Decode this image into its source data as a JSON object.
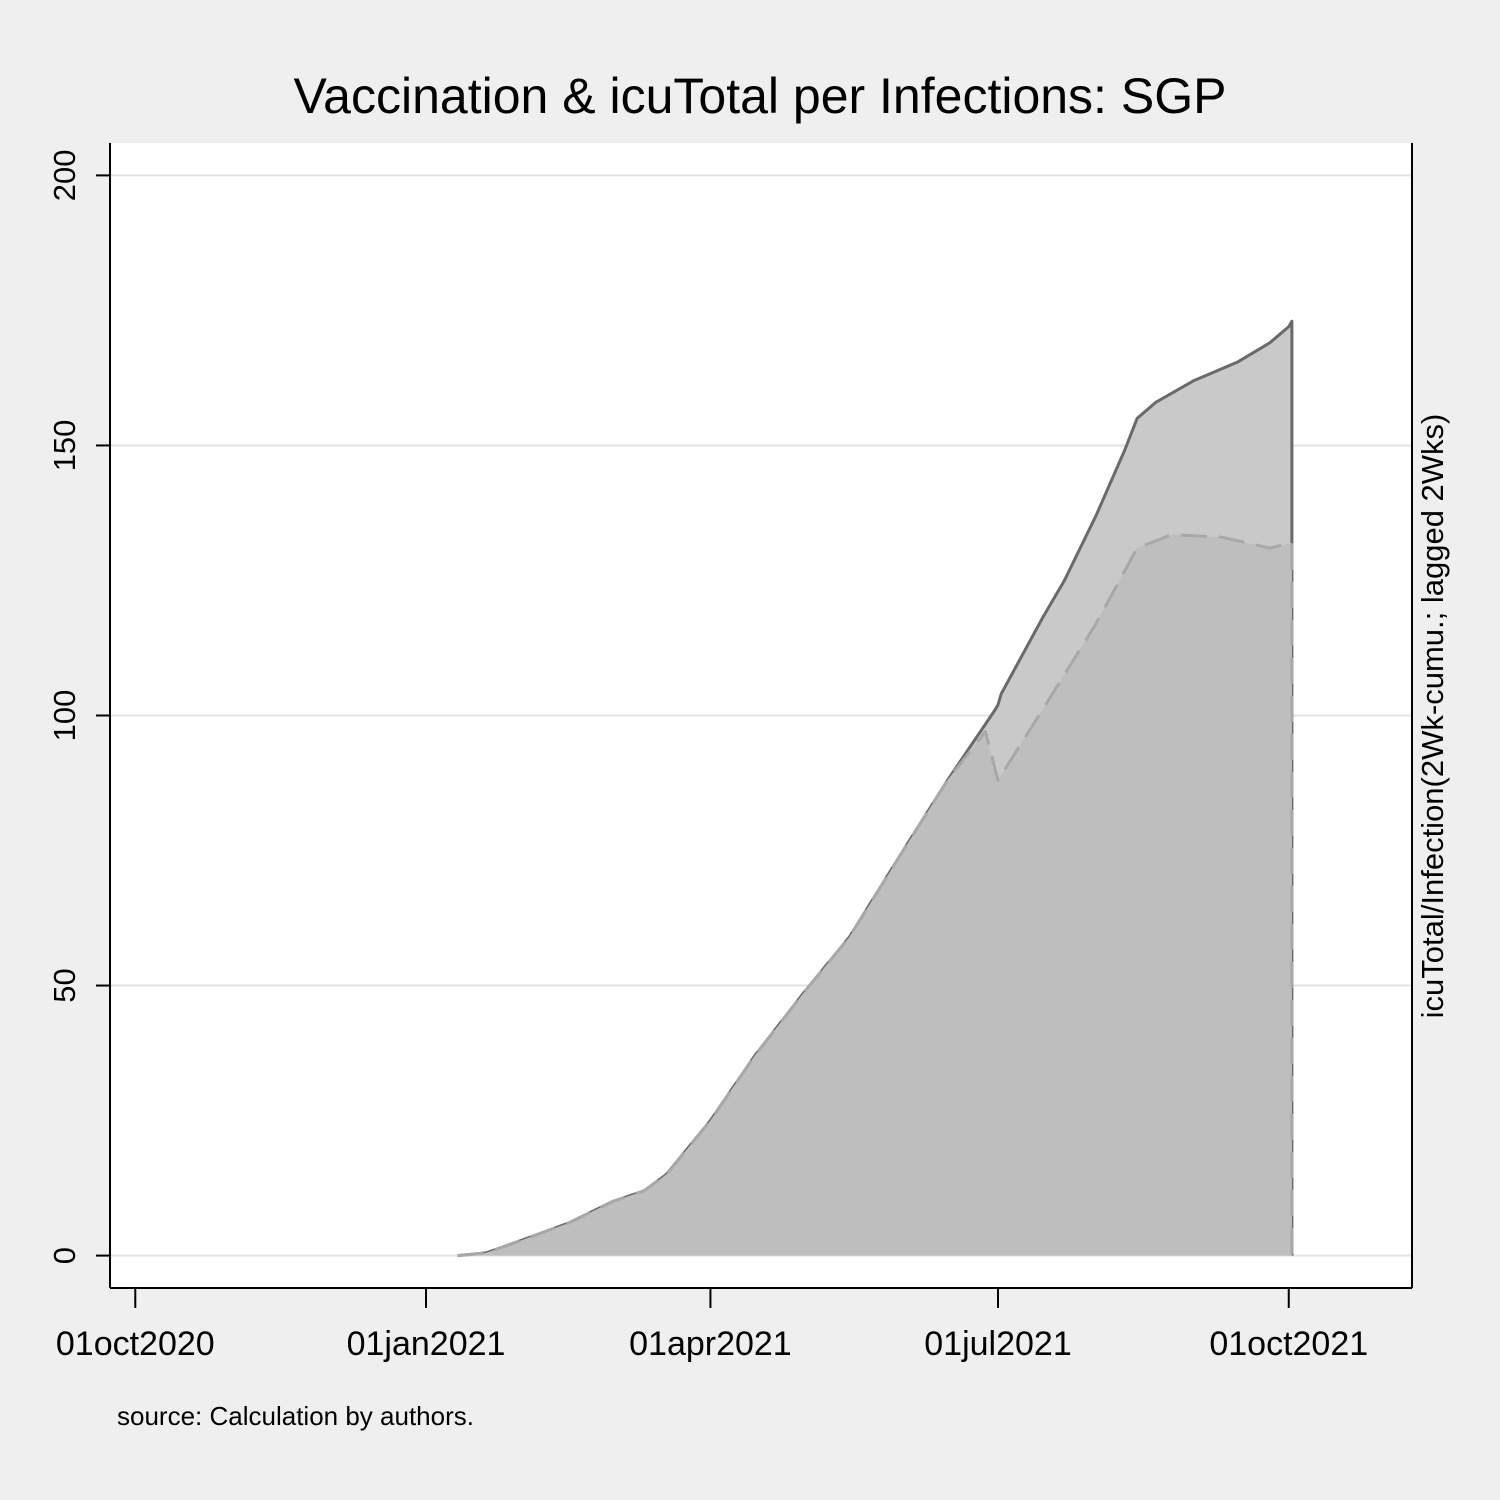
{
  "chart_data": {
    "type": "area",
    "title": "Vaccination & icuTotal per Infections: SGP",
    "xlabel": "",
    "ylabel": "",
    "y2label": "icuTotal/Infection(2Wk-cumu.; lagged 2Wks)",
    "note": "source: Calculation by authors.",
    "xlim": [
      "2020-09-23",
      "2021-11-09"
    ],
    "ylim": [
      -6,
      206
    ],
    "x_ticks": [
      {
        "date": "2020-10-01",
        "label": "01oct2020"
      },
      {
        "date": "2021-01-01",
        "label": "01jan2021"
      },
      {
        "date": "2021-04-01",
        "label": "01apr2021"
      },
      {
        "date": "2021-07-01",
        "label": "01jul2021"
      },
      {
        "date": "2021-10-01",
        "label": "01oct2021"
      }
    ],
    "y_ticks": [
      {
        "value": 0,
        "label": "0"
      },
      {
        "value": 50,
        "label": "50"
      },
      {
        "value": 100,
        "label": "100"
      },
      {
        "value": 150,
        "label": "150"
      },
      {
        "value": 200,
        "label": "200"
      }
    ],
    "grid": true,
    "legend": "none",
    "series": [
      {
        "style": "solid",
        "fill": "#c9c9c9",
        "stroke": "#6a6a6a",
        "points": [
          [
            "2021-01-11",
            0
          ],
          [
            "2021-01-20",
            0.5
          ],
          [
            "2021-02-01",
            3
          ],
          [
            "2021-02-15",
            6
          ],
          [
            "2021-03-01",
            10
          ],
          [
            "2021-03-11",
            12
          ],
          [
            "2021-03-18",
            15
          ],
          [
            "2021-04-01",
            25
          ],
          [
            "2021-04-15",
            37
          ],
          [
            "2021-05-01",
            49
          ],
          [
            "2021-05-15",
            59
          ],
          [
            "2021-06-01",
            75
          ],
          [
            "2021-06-15",
            88
          ],
          [
            "2021-06-30",
            101
          ],
          [
            "2021-07-01",
            102
          ],
          [
            "2021-07-02",
            104
          ],
          [
            "2021-07-15",
            118
          ],
          [
            "2021-07-22",
            125
          ],
          [
            "2021-08-01",
            137
          ],
          [
            "2021-08-10",
            149
          ],
          [
            "2021-08-14",
            155
          ],
          [
            "2021-08-20",
            158
          ],
          [
            "2021-09-01",
            162
          ],
          [
            "2021-09-15",
            165.5
          ],
          [
            "2021-09-25",
            169
          ],
          [
            "2021-10-01",
            172
          ],
          [
            "2021-10-02",
            173
          ],
          [
            "2021-10-02",
            0
          ]
        ]
      },
      {
        "style": "dash",
        "fill": "#bebebe",
        "stroke": "#a8a8a8",
        "points": [
          [
            "2021-01-11",
            0
          ],
          [
            "2021-01-20",
            0.5
          ],
          [
            "2021-02-01",
            3
          ],
          [
            "2021-02-15",
            6
          ],
          [
            "2021-03-01",
            10
          ],
          [
            "2021-03-11",
            12
          ],
          [
            "2021-03-18",
            15
          ],
          [
            "2021-04-01",
            25
          ],
          [
            "2021-04-15",
            37
          ],
          [
            "2021-05-01",
            49
          ],
          [
            "2021-05-15",
            59
          ],
          [
            "2021-06-01",
            75
          ],
          [
            "2021-06-15",
            88
          ],
          [
            "2021-06-27",
            97
          ],
          [
            "2021-07-01",
            88
          ],
          [
            "2021-07-15",
            101
          ],
          [
            "2021-08-01",
            117
          ],
          [
            "2021-08-14",
            131
          ],
          [
            "2021-08-25",
            133.5
          ],
          [
            "2021-09-10",
            133
          ],
          [
            "2021-09-25",
            131
          ],
          [
            "2021-10-02",
            132
          ],
          [
            "2021-10-02",
            0
          ]
        ]
      }
    ]
  }
}
